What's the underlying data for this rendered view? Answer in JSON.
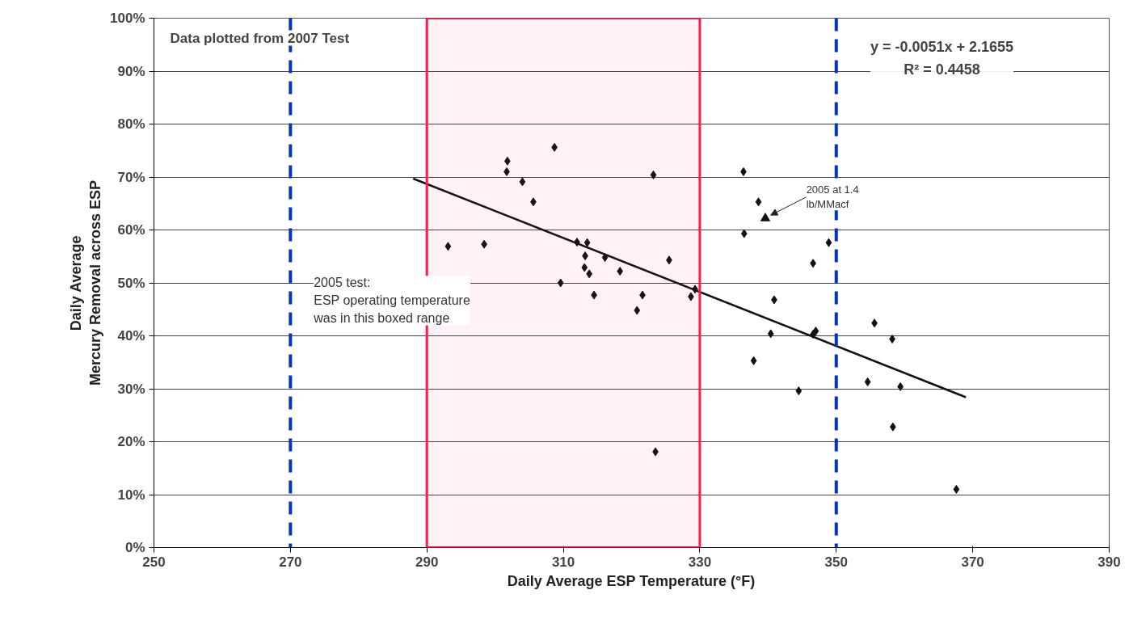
{
  "chart_data": {
    "type": "scatter",
    "xlabel": "Daily Average ESP Temperature (°F)",
    "ylabel": "Daily Average\nMercury Removal across ESP",
    "xlim": [
      250,
      390
    ],
    "xticks": [
      250,
      270,
      290,
      310,
      330,
      350,
      370,
      390
    ],
    "ylim": [
      0,
      100
    ],
    "yticks": [
      {
        "value": 0,
        "label": "0%"
      },
      {
        "value": 10,
        "label": "10%"
      },
      {
        "value": 20,
        "label": "20%"
      },
      {
        "value": 30,
        "label": "30%"
      },
      {
        "value": 40,
        "label": "40%"
      },
      {
        "value": 50,
        "label": "50%"
      },
      {
        "value": 60,
        "label": "60%"
      },
      {
        "value": 70,
        "label": "70%"
      },
      {
        "value": 80,
        "label": "80%"
      },
      {
        "value": 90,
        "label": "90%"
      },
      {
        "value": 100,
        "label": "100%"
      }
    ],
    "grid": "y",
    "marker": "diamond",
    "series": [
      {
        "color": "#111111",
        "x": [
          293.1,
          298.4,
          301.8,
          301.7,
          304.0,
          305.6,
          308.7,
          309.6,
          312.0,
          313.5,
          313.2,
          313.1,
          313.8,
          314.5,
          316.1,
          318.3,
          320.8,
          321.6,
          323.2,
          325.5,
          328.7,
          329.3,
          336.4,
          338.6,
          336.5,
          348.9,
          346.6,
          340.9,
          340.4,
          337.9,
          346.6,
          347.0,
          355.6,
          358.2,
          354.6,
          359.4,
          344.5,
          358.3,
          367.6,
          323.5
        ],
        "values": [
          56.9,
          57.3,
          73.0,
          71.0,
          69.1,
          65.3,
          75.6,
          50.0,
          57.7,
          57.6,
          55.1,
          52.9,
          51.7,
          47.7,
          54.8,
          52.2,
          44.8,
          47.7,
          70.4,
          54.3,
          47.4,
          48.8,
          71.0,
          65.3,
          59.3,
          57.6,
          53.7,
          46.8,
          40.4,
          35.3,
          40.3,
          40.9,
          42.4,
          39.4,
          31.3,
          30.4,
          29.6,
          22.8,
          11.0,
          18.1
        ]
      },
      {
        "color": "#111111",
        "marker": "triangle",
        "x": [
          339.6
        ],
        "values": [
          62.2
        ]
      },
      {
        "type": "line",
        "color": "#111111",
        "marker": "none",
        "x": [
          288,
          369
        ],
        "values": [
          69.7,
          28.4
        ]
      }
    ],
    "ref_lines": [
      {
        "axis": "x",
        "value": 270,
        "color": "#0033cc",
        "line_style": "dashed"
      },
      {
        "axis": "x",
        "value": 350,
        "color": "#0033cc",
        "line_style": "dashed"
      }
    ],
    "bands": [
      {
        "axis": "x",
        "from": 290,
        "to": 330,
        "color": "#ff1a4a",
        "label": "2005 test:\nESP operating temperature\nwas in this boxed range"
      }
    ],
    "annotations": [
      "Data plotted from 2007 Test",
      "y = -0.0051x + 2.1655\nR² = 0.4458",
      {
        "text": "2005 at 1.4\nlb/MMacf",
        "x": 339.6,
        "y": 62.2
      }
    ]
  }
}
